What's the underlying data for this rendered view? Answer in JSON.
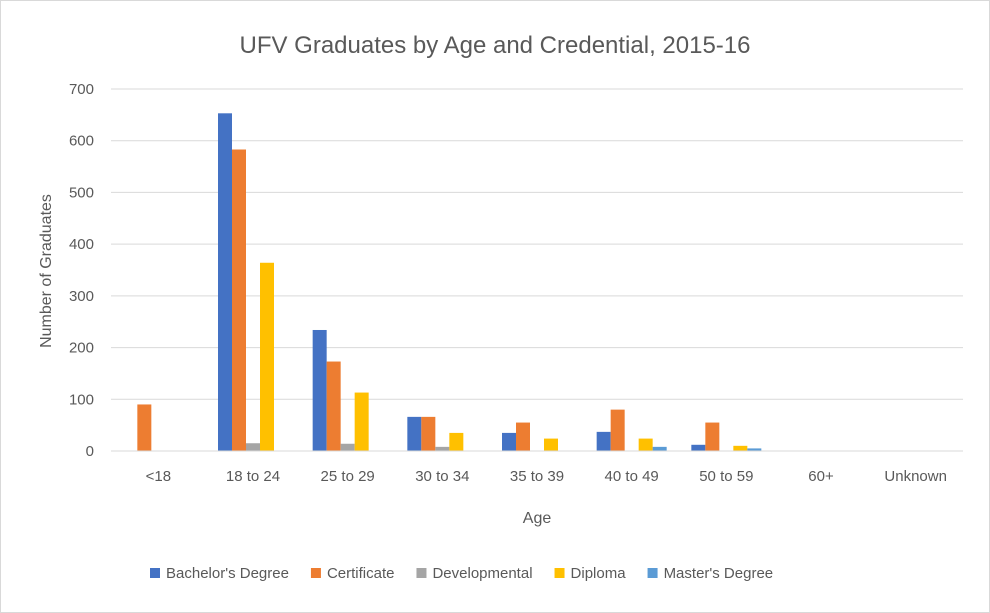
{
  "chart_data": {
    "type": "bar",
    "title": "UFV Graduates by Age and Credential, 2015-16",
    "xlabel": "Age",
    "ylabel": "Number of Graduates",
    "ylim": [
      0,
      700
    ],
    "yticks": [
      0,
      100,
      200,
      300,
      400,
      500,
      600,
      700
    ],
    "grid": true,
    "legend_position": "bottom",
    "categories": [
      "<18",
      "18 to 24",
      "25 to 29",
      "30 to 34",
      "35 to 39",
      "40 to 49",
      "50 to 59",
      "60+",
      "Unknown"
    ],
    "series": [
      {
        "name": "Bachelor's Degree",
        "color": "#4472c4",
        "values": [
          0,
          653,
          234,
          66,
          35,
          37,
          12,
          0,
          0
        ]
      },
      {
        "name": "Certificate",
        "color": "#ed7d31",
        "values": [
          90,
          583,
          173,
          66,
          55,
          80,
          55,
          0,
          0
        ]
      },
      {
        "name": "Developmental",
        "color": "#a5a5a5",
        "values": [
          0,
          15,
          14,
          8,
          0,
          0,
          0,
          0,
          0
        ]
      },
      {
        "name": "Diploma",
        "color": "#ffc000",
        "values": [
          0,
          364,
          113,
          35,
          24,
          24,
          10,
          0,
          0
        ]
      },
      {
        "name": "Master's Degree",
        "color": "#5b9bd5",
        "values": [
          0,
          0,
          0,
          0,
          0,
          8,
          5,
          0,
          0
        ]
      }
    ]
  }
}
